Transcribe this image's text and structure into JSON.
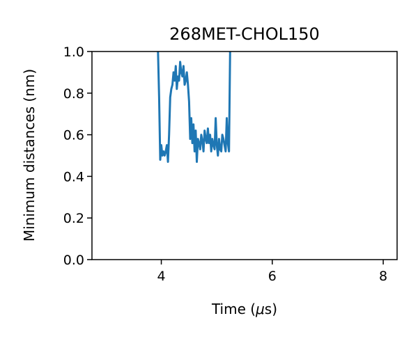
{
  "chart_data": {
    "type": "line",
    "title": "268MET-CHOL150",
    "xlabel_prefix": "Time (",
    "xlabel_mu": "μ",
    "xlabel_suffix": "s)",
    "ylabel": "Minimum distances (nm)",
    "xlim": [
      2.75,
      8.25
    ],
    "ylim": [
      0.0,
      1.0
    ],
    "x_ticks": [
      4,
      6,
      8
    ],
    "x_tick_labels": [
      "4",
      "6",
      "8"
    ],
    "y_ticks": [
      0.0,
      0.2,
      0.4,
      0.6,
      0.8,
      1.0
    ],
    "y_tick_labels": [
      "0.0",
      "0.2",
      "0.4",
      "0.6",
      "0.8",
      "1.0"
    ],
    "grid": false,
    "series": [
      {
        "color": "#1f77b4",
        "x": [
          3.94,
          3.96,
          3.98,
          4.0,
          4.02,
          4.04,
          4.06,
          4.08,
          4.1,
          4.12,
          4.14,
          4.16,
          4.18,
          4.2,
          4.22,
          4.24,
          4.26,
          4.28,
          4.3,
          4.32,
          4.34,
          4.36,
          4.38,
          4.4,
          4.42,
          4.44,
          4.46,
          4.48,
          4.5,
          4.52,
          4.54,
          4.56,
          4.58,
          4.6,
          4.62,
          4.64,
          4.66,
          4.68,
          4.7,
          4.72,
          4.74,
          4.76,
          4.78,
          4.8,
          4.82,
          4.84,
          4.86,
          4.88,
          4.9,
          4.92,
          4.94,
          4.96,
          4.98,
          5.0,
          5.02,
          5.04,
          5.06,
          5.08,
          5.1,
          5.12,
          5.14,
          5.16,
          5.18,
          5.2,
          5.22,
          5.24
        ],
        "y": [
          1.0,
          0.78,
          0.48,
          0.55,
          0.5,
          0.52,
          0.5,
          0.52,
          0.55,
          0.47,
          0.6,
          0.78,
          0.82,
          0.84,
          0.9,
          0.86,
          0.93,
          0.82,
          0.88,
          0.86,
          0.95,
          0.9,
          0.88,
          0.93,
          0.84,
          0.86,
          0.9,
          0.84,
          0.76,
          0.58,
          0.68,
          0.56,
          0.65,
          0.52,
          0.62,
          0.47,
          0.58,
          0.56,
          0.53,
          0.6,
          0.57,
          0.52,
          0.62,
          0.58,
          0.56,
          0.63,
          0.56,
          0.6,
          0.52,
          0.58,
          0.55,
          0.53,
          0.68,
          0.55,
          0.5,
          0.58,
          0.53,
          0.52,
          0.6,
          0.58,
          0.55,
          0.52,
          0.68,
          0.56,
          0.52,
          1.0
        ]
      }
    ]
  }
}
